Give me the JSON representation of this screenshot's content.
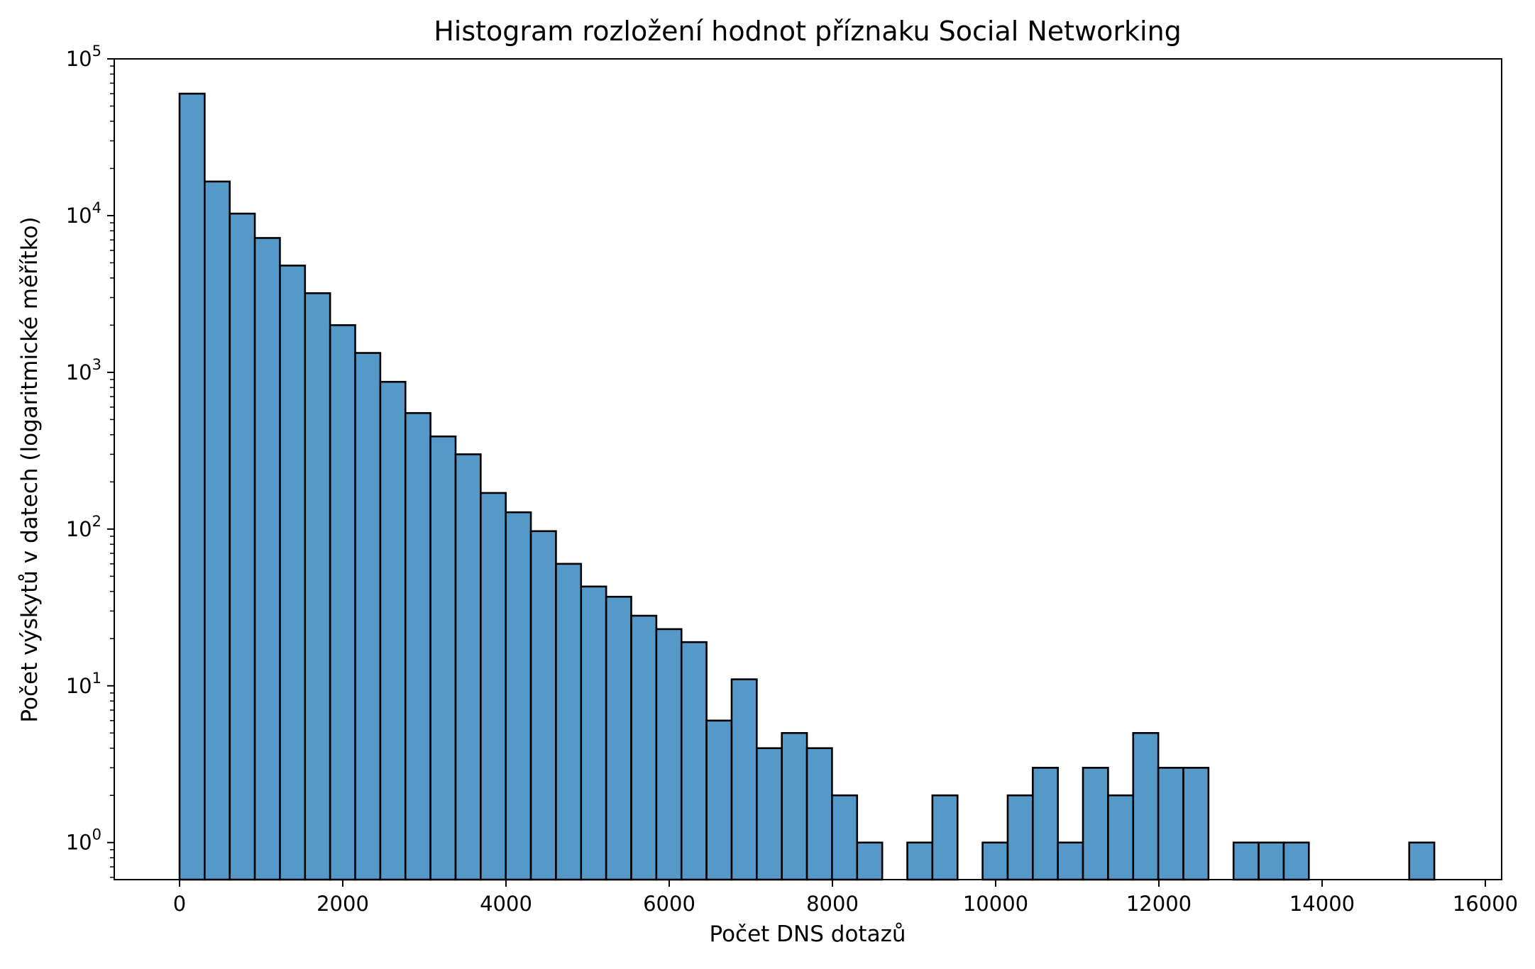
{
  "chart_data": {
    "type": "bar",
    "subtype": "histogram",
    "title": "Histogram rozložení hodnot příznaku Social Networking",
    "xlabel": "Počet DNS dotazů",
    "ylabel": "Počet výskytů v datech (logaritmické měřítko)",
    "y_scale": "log",
    "grid": false,
    "legend": "none",
    "bar_color": "#5599c8",
    "edge_color": "#000000",
    "xlim": [
      -800,
      16200
    ],
    "ylim": [
      0.58,
      100000
    ],
    "bin_start": 0,
    "bin_width": 307.5,
    "x_ticks": [
      0,
      2000,
      4000,
      6000,
      8000,
      10000,
      12000,
      14000,
      16000
    ],
    "x_tick_labels": [
      "0",
      "2000",
      "4000",
      "6000",
      "8000",
      "10000",
      "12000",
      "14000",
      "16000"
    ],
    "y_ticks": [
      1,
      10,
      100,
      1000,
      10000,
      100000
    ],
    "y_tick_labels": [
      {
        "base": "10",
        "exp": "0"
      },
      {
        "base": "10",
        "exp": "1"
      },
      {
        "base": "10",
        "exp": "2"
      },
      {
        "base": "10",
        "exp": "3"
      },
      {
        "base": "10",
        "exp": "4"
      },
      {
        "base": "10",
        "exp": "5"
      }
    ],
    "counts": [
      60000,
      16500,
      10300,
      7200,
      4800,
      3200,
      2000,
      1330,
      870,
      550,
      390,
      300,
      170,
      128,
      97,
      60,
      43,
      37,
      28,
      23,
      19,
      6,
      11,
      4,
      5,
      4,
      2,
      1,
      0,
      1,
      2,
      0,
      1,
      2,
      3,
      1,
      3,
      2,
      5,
      3,
      3,
      0,
      1,
      1,
      1,
      0,
      0,
      0,
      0,
      1
    ]
  }
}
